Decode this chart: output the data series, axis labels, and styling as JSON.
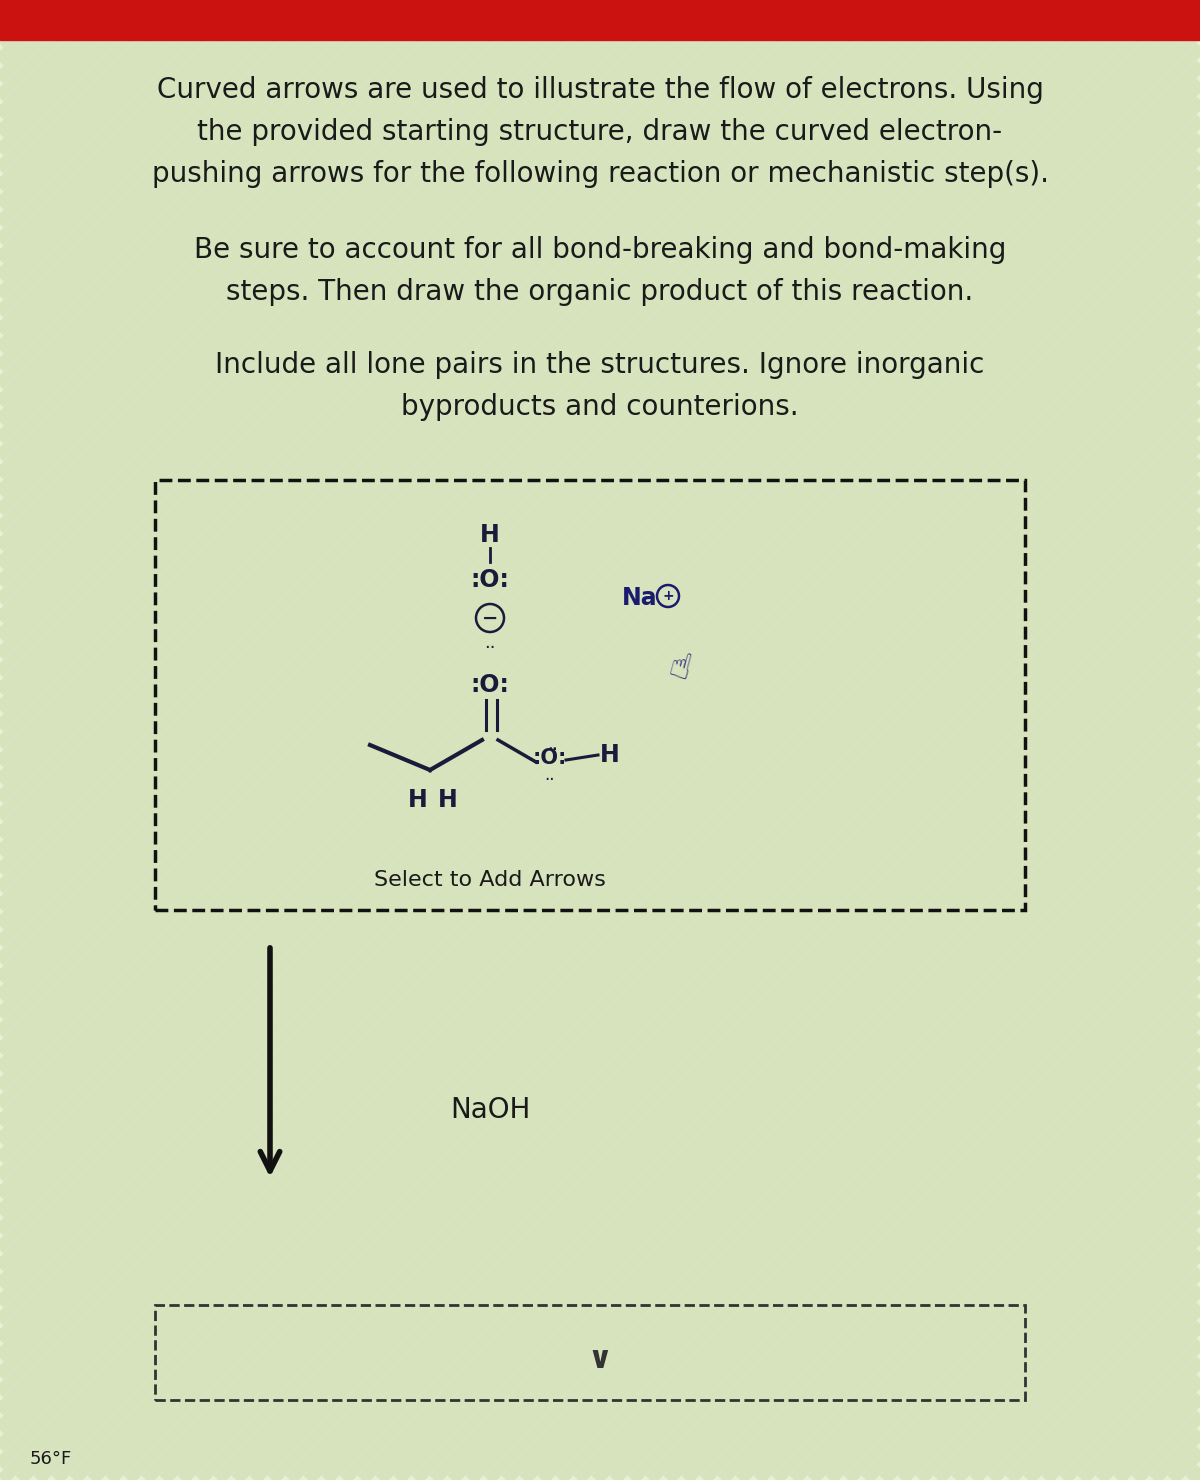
{
  "bg_color_light": "#e8eed8",
  "bg_color_stripe1": "#c8daa8",
  "bg_color_stripe2": "#dce8c0",
  "red_bar_color": "#cc1111",
  "text_color": "#1a1a1a",
  "title_lines": [
    "Curved arrows are used to illustrate the flow of electrons. Using",
    "    the provided starting structure, draw the curved electron-",
    "pushing arrows for the following reaction or mechanistic step(s)."
  ],
  "para2_lines": [
    "Be sure to account for all bond-breaking and bond-making",
    "    steps. Then draw the organic product of this reaction."
  ],
  "para3_lines": [
    "    Include all lone pairs in the structures. Ignore inorganic",
    "            byproducts and counterions."
  ],
  "select_text": "Select to Add Arrows",
  "naoh_text": "NaOH",
  "temp_text": "56°F",
  "molecule_color": "#1a1a3a",
  "na_color": "#1a1a6e",
  "font_size_title": 20,
  "font_size_mol": 17
}
